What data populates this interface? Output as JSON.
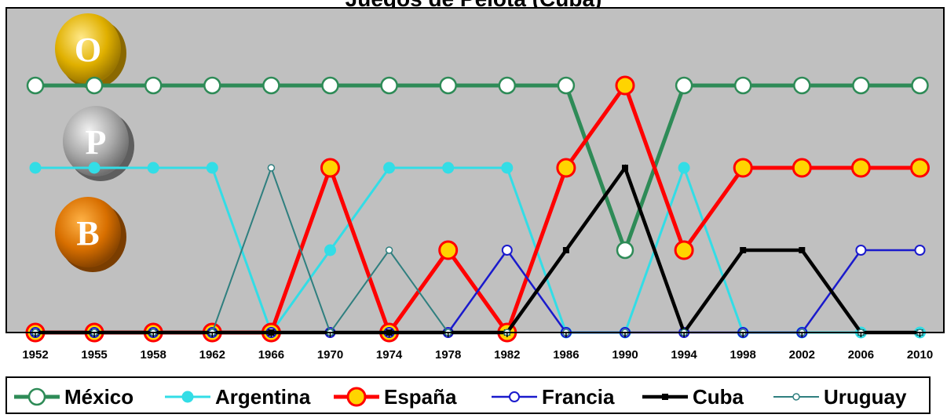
{
  "chart_data": {
    "type": "line",
    "title": "Juegos de Pelota (Cuba)",
    "categories": [
      "1952",
      "1955",
      "1958",
      "1962",
      "1966",
      "1970",
      "1974",
      "1978",
      "1982",
      "1986",
      "1990",
      "1994",
      "1998",
      "2002",
      "2006",
      "2010"
    ],
    "y_levels": {
      "none": 0,
      "B": 1,
      "P": 2,
      "O": 3
    },
    "y_level_labels": [
      "O",
      "P",
      "B"
    ],
    "ylim": [
      0,
      3.4
    ],
    "series": [
      {
        "name": "México",
        "color": "#2e8b57",
        "marker": "open-circle",
        "values": [
          3,
          3,
          3,
          3,
          3,
          3,
          3,
          3,
          3,
          3,
          1,
          3,
          3,
          3,
          3,
          3
        ]
      },
      {
        "name": "Argentina",
        "color": "#33dde6",
        "marker": "filled-circle",
        "values": [
          2,
          2,
          2,
          2,
          0,
          1,
          2,
          2,
          2,
          0,
          0,
          2,
          0,
          0,
          0,
          0
        ]
      },
      {
        "name": "España",
        "color": "#ff0000",
        "marker": "yellow-circle",
        "values": [
          0,
          0,
          0,
          0,
          0,
          2,
          0,
          1,
          0,
          2,
          3,
          1,
          2,
          2,
          2,
          2
        ]
      },
      {
        "name": "Francia",
        "color": "#1a1acc",
        "marker": "open-circle-small",
        "values": [
          0,
          0,
          0,
          0,
          0,
          0,
          0,
          0,
          1,
          0,
          0,
          0,
          0,
          0,
          1,
          1
        ]
      },
      {
        "name": "Cuba",
        "color": "#000000",
        "marker": "black-square",
        "values": [
          0,
          0,
          0,
          0,
          0,
          0,
          0,
          0,
          0,
          1,
          2,
          0,
          1,
          1,
          0,
          0
        ]
      },
      {
        "name": "Uruguay",
        "color": "#2f7f7f",
        "marker": "tiny-circle",
        "values": [
          0,
          0,
          0,
          0,
          2,
          0,
          1,
          0,
          0,
          0,
          0,
          0,
          0,
          0,
          0,
          0
        ]
      }
    ]
  }
}
